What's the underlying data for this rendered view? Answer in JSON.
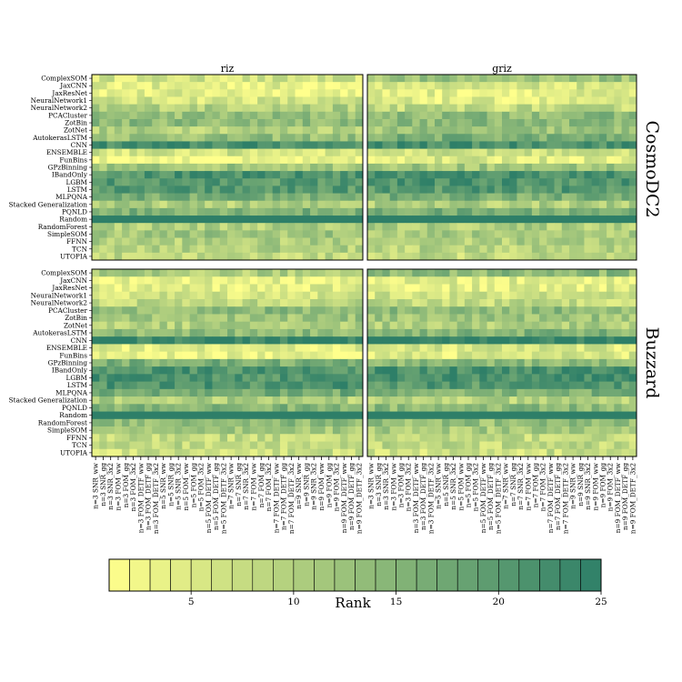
{
  "chart_data": {
    "type": "heatmap",
    "panels": [
      {
        "row": "CosmoDC2",
        "col": "riz"
      },
      {
        "row": "CosmoDC2",
        "col": "griz"
      },
      {
        "row": "Buzzard",
        "col": "riz"
      },
      {
        "row": "Buzzard",
        "col": "griz"
      }
    ],
    "column_titles": [
      "riz",
      "griz"
    ],
    "row_titles": [
      "CosmoDC2",
      "Buzzard"
    ],
    "methods": [
      "ComplexSOM",
      "JaxCNN",
      "JaxResNet",
      "NeuralNetwork1",
      "NeuralNetwork2",
      "PCACluster",
      "ZotBin",
      "ZotNet",
      "AutokerasLSTM",
      "CNN",
      "ENSEMBLE",
      "FunBins",
      "GPzBinning",
      "IBandOnly",
      "LGBM",
      "LSTM",
      "MLPQNA",
      "Stacked Generalization",
      "PQNLD",
      "Random",
      "RandomForest",
      "SimpleSOM",
      "FFNN",
      "TCN",
      "UTOPIA"
    ],
    "metrics": [
      "n=3 SNR_ww",
      "n=3 SNR_gg",
      "n=3 SNR_3x2",
      "n=3 FOM_ww",
      "n=3 FOM_gg",
      "n=3 FOM_3x2",
      "n=3 FOM_DETF_ww",
      "n=3 FOM_DETF_gg",
      "n=3 FOM_DETF_3x2",
      "n=5 SNR_ww",
      "n=5 SNR_gg",
      "n=5 SNR_3x2",
      "n=5 FOM_ww",
      "n=5 FOM_gg",
      "n=5 FOM_3x2",
      "n=5 FOM_DETF_ww",
      "n=5 FOM_DETF_gg",
      "n=5 FOM_DETF_3x2",
      "n=7 SNR_ww",
      "n=7 SNR_gg",
      "n=7 SNR_3x2",
      "n=7 FOM_ww",
      "n=7 FOM_gg",
      "n=7 FOM_3x2",
      "n=7 FOM_DETF_ww",
      "n=7 FOM_DETF_gg",
      "n=7 FOM_DETF_3x2",
      "n=9 SNR_ww",
      "n=9 SNR_gg",
      "n=9 SNR_3x2",
      "n=9 FOM_ww",
      "n=9 FOM_gg",
      "n=9 FOM_3x2",
      "n=9 FOM_DETF_ww",
      "n=9 FOM_DETF_gg",
      "n=9 FOM_DETF_3x2"
    ],
    "method_mean_rank": {
      "CosmoDC2-riz": [
        6,
        4,
        4,
        6,
        10,
        13,
        14,
        10,
        13,
        22,
        6,
        2,
        12,
        21,
        20,
        20,
        16,
        10,
        16,
        25,
        10,
        12,
        10,
        10,
        8
      ],
      "CosmoDC2-griz": [
        12,
        6,
        4,
        4,
        8,
        14,
        14,
        12,
        16,
        22,
        7,
        5,
        12,
        22,
        21,
        20,
        16,
        10,
        16,
        25,
        10,
        11,
        10,
        9,
        8
      ],
      "Buzzard-riz": [
        10,
        4,
        4,
        6,
        8,
        14,
        12,
        10,
        14,
        24,
        4,
        3,
        16,
        21,
        21,
        21,
        17,
        10,
        15,
        25,
        14,
        11,
        8,
        8,
        7
      ],
      "Buzzard-griz": [
        14,
        4,
        4,
        6,
        8,
        14,
        12,
        10,
        15,
        25,
        5,
        5,
        14,
        22,
        22,
        20,
        16,
        9,
        14,
        25,
        13,
        11,
        8,
        8,
        7
      ]
    },
    "colorbar": {
      "label": "Rank",
      "min": 1,
      "max": 25,
      "ticks": [
        5,
        10,
        15,
        20,
        25
      ]
    },
    "colors": {
      "low": "#ffff8c",
      "high": "#2e7f68"
    }
  }
}
